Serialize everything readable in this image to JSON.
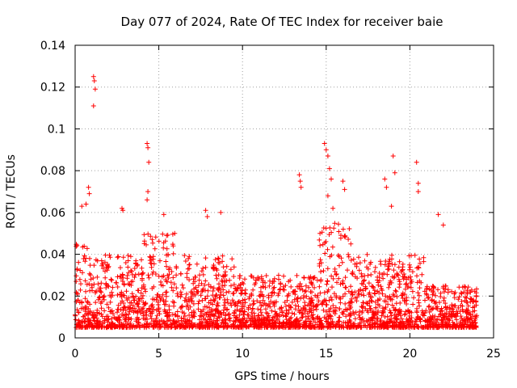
{
  "chart_data": {
    "type": "scatter",
    "title": "Day 077 of 2024, Rate Of TEC Index for receiver baie",
    "xlabel": "GPS time / hours",
    "ylabel": "ROTI / TECUs",
    "xlim": [
      0,
      25
    ],
    "ylim": [
      0,
      0.14
    ],
    "xticks": [
      "0",
      "5",
      "10",
      "15",
      "20",
      "25"
    ],
    "yticks": [
      "0",
      "0.02",
      "0.04",
      "0.06",
      "0.08",
      "0.1",
      "0.12",
      "0.14"
    ],
    "grid": true,
    "marker": "plus",
    "color": "#ff0000",
    "series": [
      {
        "x": [
          0.4,
          0.65,
          0.8,
          0.85,
          1.1,
          1.15,
          1.1,
          1.2,
          2.8,
          2.85,
          4.3,
          4.35,
          4.4,
          4.35,
          4.3,
          5.3,
          7.8,
          7.9,
          8.7,
          13.4,
          13.45,
          13.5,
          14.9,
          15.0,
          15.1,
          15.2,
          15.3,
          15.1,
          15.4,
          16.0,
          16.1,
          18.5,
          18.6,
          18.9,
          19.0,
          19.1,
          20.4,
          20.5,
          20.5,
          21.7,
          22.0
        ],
        "y": [
          0.063,
          0.064,
          0.072,
          0.069,
          0.125,
          0.123,
          0.111,
          0.119,
          0.062,
          0.061,
          0.093,
          0.091,
          0.084,
          0.07,
          0.066,
          0.059,
          0.061,
          0.058,
          0.06,
          0.078,
          0.075,
          0.072,
          0.093,
          0.09,
          0.087,
          0.081,
          0.076,
          0.068,
          0.062,
          0.075,
          0.071,
          0.076,
          0.072,
          0.063,
          0.087,
          0.079,
          0.084,
          0.074,
          0.07,
          0.059,
          0.054
        ]
      }
    ],
    "density_bands": [
      {
        "from": 0.0,
        "to": 1.0,
        "min": 0.005,
        "max": 0.045
      },
      {
        "from": 1.0,
        "to": 4.0,
        "min": 0.005,
        "max": 0.04
      },
      {
        "from": 4.0,
        "to": 6.0,
        "min": 0.005,
        "max": 0.05
      },
      {
        "from": 6.0,
        "to": 9.5,
        "min": 0.005,
        "max": 0.04
      },
      {
        "from": 9.5,
        "to": 14.5,
        "min": 0.005,
        "max": 0.03
      },
      {
        "from": 14.5,
        "to": 16.5,
        "min": 0.005,
        "max": 0.055
      },
      {
        "from": 16.5,
        "to": 21.0,
        "min": 0.005,
        "max": 0.04
      },
      {
        "from": 21.0,
        "to": 24.0,
        "min": 0.005,
        "max": 0.025
      }
    ]
  }
}
